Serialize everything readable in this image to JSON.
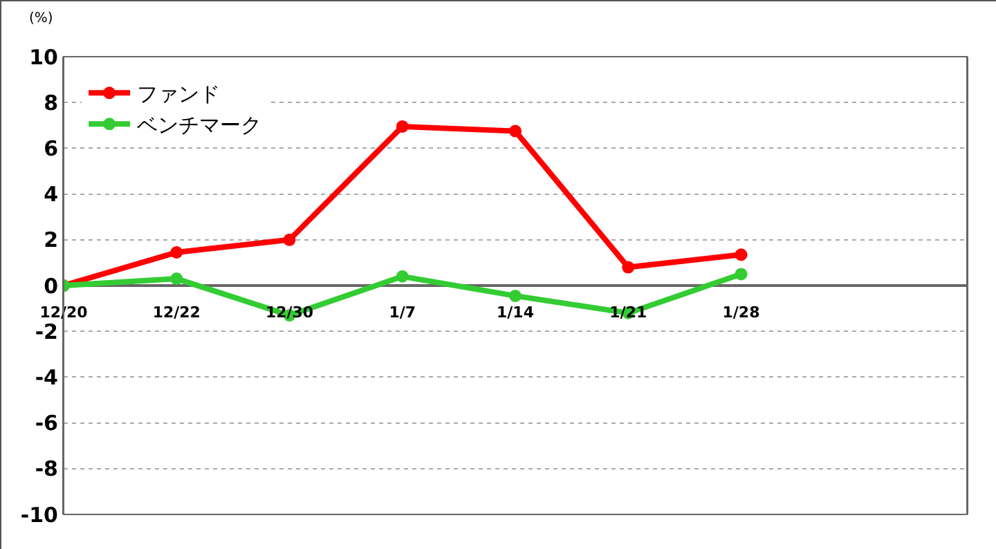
{
  "chart_data": {
    "type": "line",
    "ylabel": "(%)",
    "categories": [
      "12/20",
      "12/22",
      "12/30",
      "1/7",
      "1/14",
      "1/21",
      "1/28"
    ],
    "series": [
      {
        "name": "ファンド",
        "color": "#ff0000",
        "values": [
          0,
          1.45,
          2.0,
          6.95,
          6.75,
          0.8,
          1.35
        ]
      },
      {
        "name": "ベンチマーク",
        "color": "#33cc33",
        "values": [
          0,
          0.3,
          -1.3,
          0.4,
          -0.45,
          -1.2,
          0.5
        ]
      }
    ],
    "ylim": [
      -10,
      10
    ],
    "yticks": [
      -10,
      -8,
      -6,
      -4,
      -2,
      0,
      2,
      4,
      6,
      8,
      10
    ],
    "grid": "y",
    "legend": "top left",
    "marker": "circle",
    "line_style": "solid"
  }
}
